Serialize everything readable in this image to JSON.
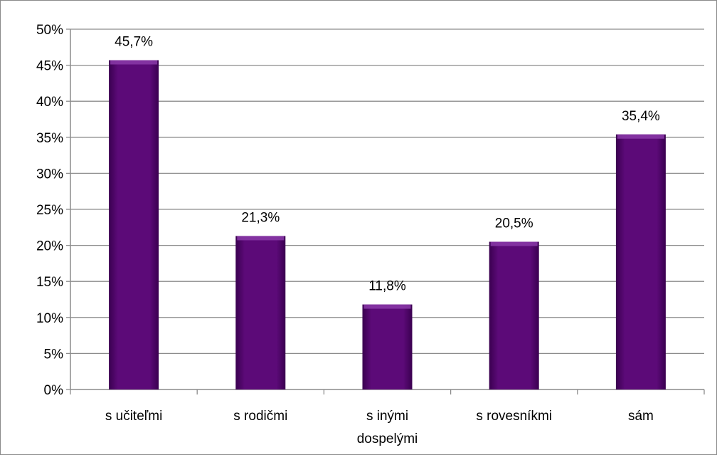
{
  "colors": {
    "bar": "#5c0a78",
    "bar_light": "#8a3aa8",
    "bar_dark": "#3a0050",
    "grid": "#8c8c8c",
    "axis": "#8c8c8c"
  },
  "chart_data": {
    "type": "bar",
    "title": "",
    "xlabel": "",
    "ylabel": "",
    "categories": [
      [
        "s učiteľmi"
      ],
      [
        "s rodičmi"
      ],
      [
        "s inými",
        "dospelými"
      ],
      [
        "s rovesníkmi"
      ],
      [
        "sám"
      ]
    ],
    "values": [
      45.7,
      21.3,
      11.8,
      20.5,
      35.4
    ],
    "data_labels": [
      "45,7%",
      "21,3%",
      "11,8%",
      "20,5%",
      "35,4%"
    ],
    "ylim": [
      0,
      50
    ],
    "yticks": [
      0,
      5,
      10,
      15,
      20,
      25,
      30,
      35,
      40,
      45,
      50
    ],
    "ytick_labels": [
      "0%",
      "5%",
      "10%",
      "15%",
      "20%",
      "25%",
      "30%",
      "35%",
      "40%",
      "45%",
      "50%"
    ],
    "grid": true,
    "legend": "none"
  }
}
